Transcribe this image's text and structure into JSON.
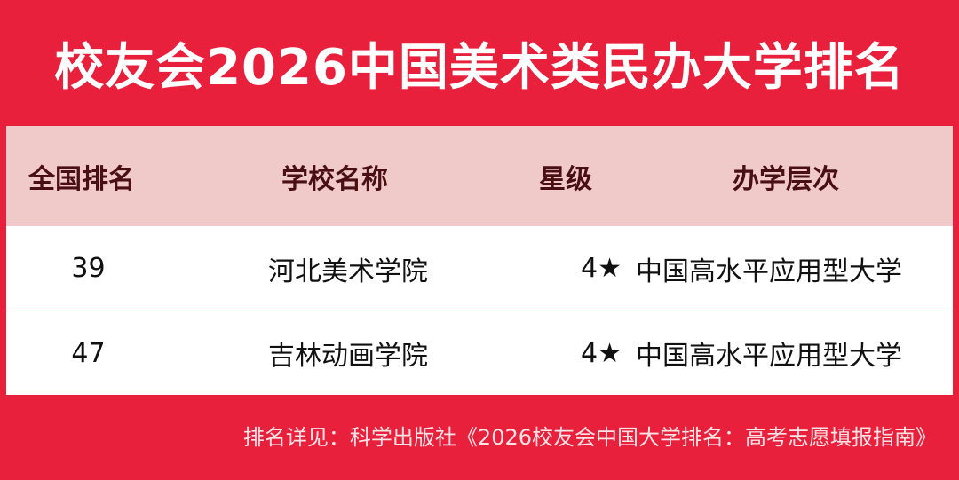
{
  "title": "校友会2026中国美术类民办大学排名",
  "table": {
    "headers": [
      "全国排名",
      "学校名称",
      "星级",
      "办学层次"
    ],
    "rows": [
      {
        "rank": "39",
        "name": "河北美术学院",
        "stars": "4★",
        "level": "中国高水平应用型大学"
      },
      {
        "rank": "47",
        "name": "吉林动画学院",
        "stars": "4★",
        "level": "中国高水平应用型大学"
      }
    ]
  },
  "footer": "排名详见：科学出版社《2026校友会中国大学排名：高考志愿填报指南》",
  "colors": {
    "accent": "#e8203c",
    "header_bg": "#f0c9c9",
    "header_text": "#4a0f12"
  }
}
